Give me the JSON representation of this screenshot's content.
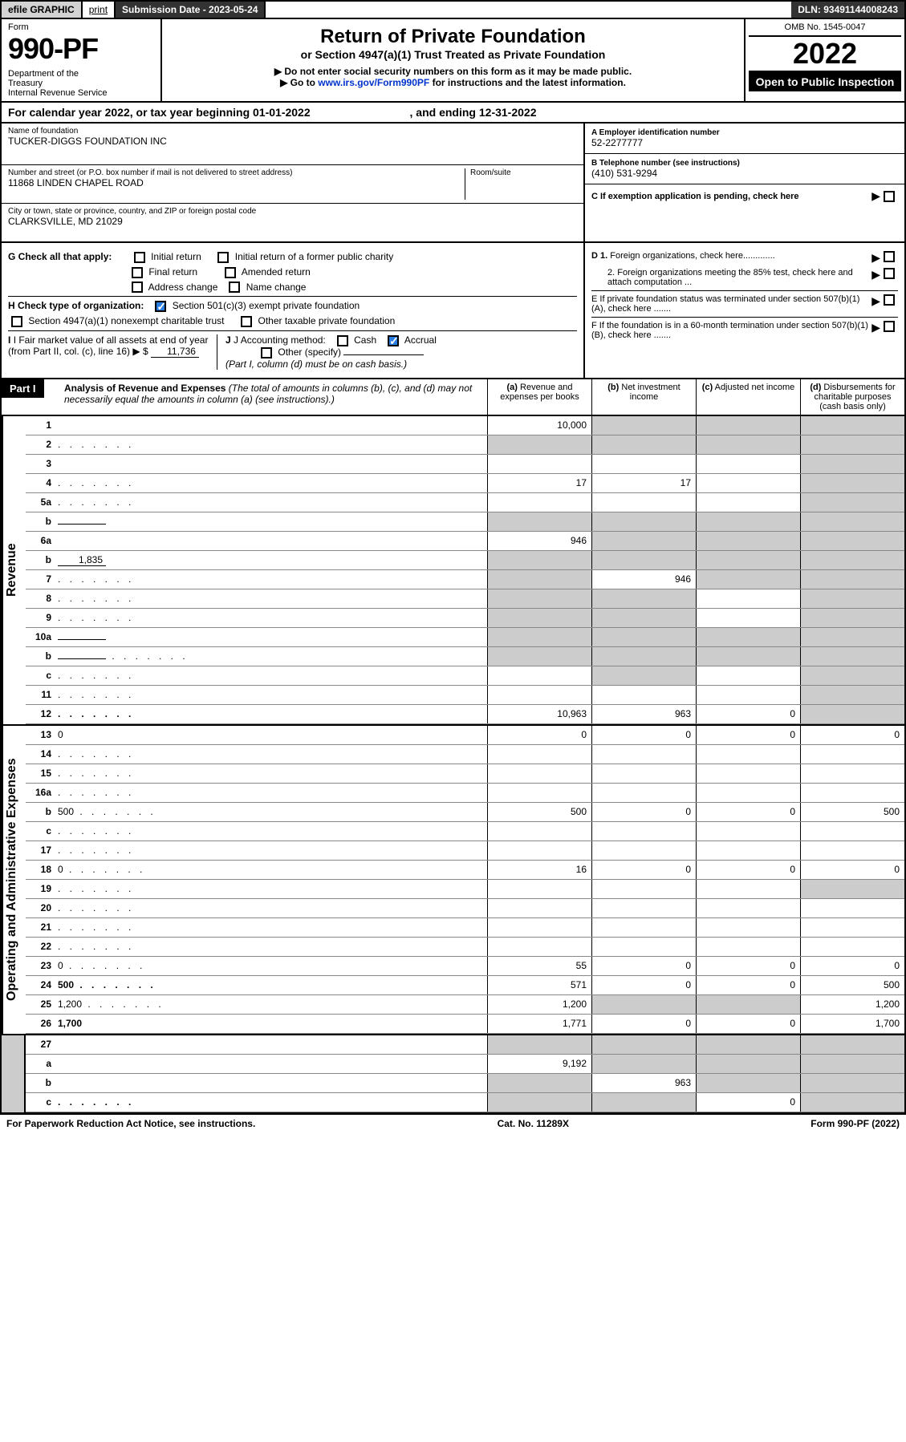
{
  "topbar": {
    "efile": "efile GRAPHIC",
    "print": "print",
    "submission_label": "Submission Date - 2023-05-24",
    "dln": "DLN: 93491144008243"
  },
  "header": {
    "form_label": "Form",
    "form_no": "990-PF",
    "dept": "Department of the Treasury\nInternal Revenue Service",
    "title": "Return of Private Foundation",
    "sub1": "or Section 4947(a)(1) Trust Treated as Private Foundation",
    "sub2a": "▶ Do not enter social security numbers on this form as it may be made public.",
    "sub2b": "▶ Go to ",
    "sub2_link": "www.irs.gov/Form990PF",
    "sub2c": " for instructions and the latest information.",
    "omb": "OMB No. 1545-0047",
    "year": "2022",
    "open": "Open to Public Inspection"
  },
  "calendar": {
    "text_a": "For calendar year 2022, or tax year beginning ",
    "begin": "01-01-2022",
    "text_b": ", and ending ",
    "end": "12-31-2022"
  },
  "foundation": {
    "name_label": "Name of foundation",
    "name": "TUCKER-DIGGS FOUNDATION INC",
    "addr_label": "Number and street (or P.O. box number if mail is not delivered to street address)",
    "addr": "11868 LINDEN CHAPEL ROAD",
    "room_label": "Room/suite",
    "city_label": "City or town, state or province, country, and ZIP or foreign postal code",
    "city": "CLARKSVILLE, MD  21029",
    "ein_label": "A Employer identification number",
    "ein": "52-2277777",
    "phone_label": "B Telephone number (see instructions)",
    "phone": "(410) 531-9294",
    "c_label": "C If exemption application is pending, check here",
    "d1_label": "D 1. Foreign organizations, check here.............",
    "d2_label": "2. Foreign organizations meeting the 85% test, check here and attach computation ...",
    "e_label": "E  If private foundation status was terminated under section 507(b)(1)(A), check here .......",
    "f_label": "F  If the foundation is in a 60-month termination under section 507(b)(1)(B), check here ......."
  },
  "checks": {
    "g_label": "G Check all that apply:",
    "g_opts": [
      "Initial return",
      "Initial return of a former public charity",
      "Final return",
      "Amended return",
      "Address change",
      "Name change"
    ],
    "h_label": "H Check type of organization:",
    "h_opt1": "Section 501(c)(3) exempt private foundation",
    "h_opt2": "Section 4947(a)(1) nonexempt charitable trust",
    "h_opt3": "Other taxable private foundation",
    "i_label": "I Fair market value of all assets at end of year (from Part II, col. (c), line 16)",
    "i_value": "11,736",
    "j_label": "J Accounting method:",
    "j_cash": "Cash",
    "j_accrual": "Accrual",
    "j_other": "Other (specify)",
    "j_note": "(Part I, column (d) must be on cash basis.)"
  },
  "part1": {
    "label": "Part I",
    "title": "Analysis of Revenue and Expenses",
    "subtitle": "(The total of amounts in columns (b), (c), and (d) may not necessarily equal the amounts in column (a) (see instructions).)",
    "col_a": "(a) Revenue and expenses per books",
    "col_b": "(b) Net investment income",
    "col_c": "(c) Adjusted net income",
    "col_d": "(d) Disbursements for charitable purposes (cash basis only)"
  },
  "revenue_label": "Revenue",
  "expenses_label": "Operating and Administrative Expenses",
  "rows": [
    {
      "n": "1",
      "d": "",
      "a": "10,000",
      "b": "",
      "c": "",
      "grey": [
        "b",
        "c",
        "d"
      ]
    },
    {
      "n": "2",
      "d": "",
      "dots": true,
      "a": "",
      "b": "",
      "c": "",
      "grey": [
        "a",
        "b",
        "c",
        "d"
      ]
    },
    {
      "n": "3",
      "d": "",
      "a": "",
      "b": "",
      "c": "",
      "grey": [
        "d"
      ]
    },
    {
      "n": "4",
      "d": "",
      "dots": true,
      "a": "17",
      "b": "17",
      "c": "",
      "grey": [
        "d"
      ]
    },
    {
      "n": "5a",
      "d": "",
      "dots": true,
      "a": "",
      "b": "",
      "c": "",
      "grey": [
        "d"
      ]
    },
    {
      "n": "b",
      "d": "",
      "inline": "",
      "a": "",
      "b": "",
      "c": "",
      "grey": [
        "a",
        "b",
        "c",
        "d"
      ]
    },
    {
      "n": "6a",
      "d": "",
      "a": "946",
      "b": "",
      "c": "",
      "grey": [
        "b",
        "c",
        "d"
      ]
    },
    {
      "n": "b",
      "d": "",
      "inline": "1,835",
      "a": "",
      "b": "",
      "c": "",
      "grey": [
        "a",
        "b",
        "c",
        "d"
      ]
    },
    {
      "n": "7",
      "d": "",
      "dots": true,
      "a": "",
      "b": "946",
      "c": "",
      "grey": [
        "a",
        "c",
        "d"
      ]
    },
    {
      "n": "8",
      "d": "",
      "dots": true,
      "a": "",
      "b": "",
      "c": "",
      "grey": [
        "a",
        "b",
        "d"
      ]
    },
    {
      "n": "9",
      "d": "",
      "dots": true,
      "a": "",
      "b": "",
      "c": "",
      "grey": [
        "a",
        "b",
        "d"
      ]
    },
    {
      "n": "10a",
      "d": "",
      "inline": "",
      "a": "",
      "b": "",
      "c": "",
      "grey": [
        "a",
        "b",
        "c",
        "d"
      ]
    },
    {
      "n": "b",
      "d": "",
      "dots": true,
      "inline": "",
      "a": "",
      "b": "",
      "c": "",
      "grey": [
        "a",
        "b",
        "c",
        "d"
      ]
    },
    {
      "n": "c",
      "d": "",
      "dots": true,
      "a": "",
      "b": "",
      "c": "",
      "grey": [
        "b",
        "d"
      ]
    },
    {
      "n": "11",
      "d": "",
      "dots": true,
      "a": "",
      "b": "",
      "c": "",
      "grey": [
        "d"
      ]
    },
    {
      "n": "12",
      "d": "",
      "dots": true,
      "bold": true,
      "a": "10,963",
      "b": "963",
      "c": "0",
      "grey": [
        "d"
      ]
    }
  ],
  "exp_rows": [
    {
      "n": "13",
      "d": "0",
      "a": "0",
      "b": "0",
      "c": "0"
    },
    {
      "n": "14",
      "d": "",
      "dots": true,
      "a": "",
      "b": "",
      "c": ""
    },
    {
      "n": "15",
      "d": "",
      "dots": true,
      "a": "",
      "b": "",
      "c": ""
    },
    {
      "n": "16a",
      "d": "",
      "dots": true,
      "a": "",
      "b": "",
      "c": ""
    },
    {
      "n": "b",
      "d": "500",
      "dots": true,
      "a": "500",
      "b": "0",
      "c": "0"
    },
    {
      "n": "c",
      "d": "",
      "dots": true,
      "a": "",
      "b": "",
      "c": ""
    },
    {
      "n": "17",
      "d": "",
      "dots": true,
      "a": "",
      "b": "",
      "c": ""
    },
    {
      "n": "18",
      "d": "0",
      "dots": true,
      "a": "16",
      "b": "0",
      "c": "0"
    },
    {
      "n": "19",
      "d": "",
      "dots": true,
      "a": "",
      "b": "",
      "c": "",
      "grey": [
        "d"
      ]
    },
    {
      "n": "20",
      "d": "",
      "dots": true,
      "a": "",
      "b": "",
      "c": ""
    },
    {
      "n": "21",
      "d": "",
      "dots": true,
      "a": "",
      "b": "",
      "c": ""
    },
    {
      "n": "22",
      "d": "",
      "dots": true,
      "a": "",
      "b": "",
      "c": ""
    },
    {
      "n": "23",
      "d": "0",
      "dots": true,
      "a": "55",
      "b": "0",
      "c": "0"
    },
    {
      "n": "24",
      "d": "500",
      "dots": true,
      "bold": true,
      "a": "571",
      "b": "0",
      "c": "0"
    },
    {
      "n": "25",
      "d": "1,200",
      "dots": true,
      "a": "1,200",
      "b": "",
      "c": "",
      "grey": [
        "b",
        "c"
      ]
    },
    {
      "n": "26",
      "d": "1,700",
      "bold": true,
      "a": "1,771",
      "b": "0",
      "c": "0"
    }
  ],
  "final_rows": [
    {
      "n": "27",
      "d": "",
      "a": "",
      "b": "",
      "c": "",
      "grey": [
        "a",
        "b",
        "c",
        "d"
      ]
    },
    {
      "n": "a",
      "d": "",
      "bold": true,
      "a": "9,192",
      "b": "",
      "c": "",
      "grey": [
        "b",
        "c",
        "d"
      ]
    },
    {
      "n": "b",
      "d": "",
      "bold": true,
      "a": "",
      "b": "963",
      "c": "",
      "grey": [
        "a",
        "c",
        "d"
      ]
    },
    {
      "n": "c",
      "d": "",
      "dots": true,
      "bold": true,
      "a": "",
      "b": "",
      "c": "0",
      "grey": [
        "a",
        "b",
        "d"
      ]
    }
  ],
  "footer": {
    "left": "For Paperwork Reduction Act Notice, see instructions.",
    "center": "Cat. No. 11289X",
    "right": "Form 990-PF (2022)"
  }
}
